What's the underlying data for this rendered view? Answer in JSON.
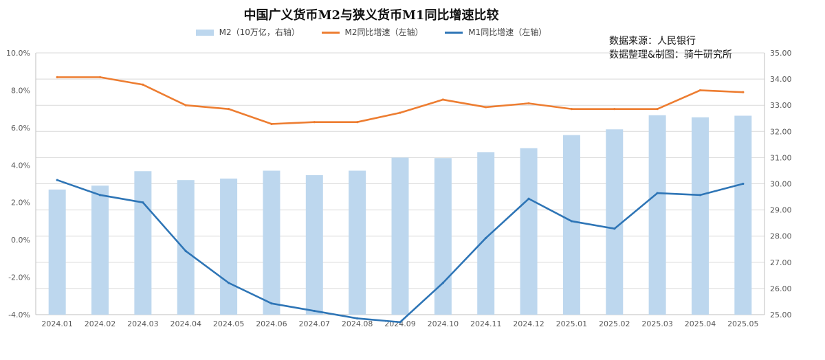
{
  "chart_data": {
    "type": "bar+line",
    "title": "中国广义货币M2与狭义货币M1同比增速比较",
    "categories": [
      "2024.01",
      "2024.02",
      "2024.03",
      "2024.04",
      "2024.05",
      "2024.06",
      "2024.07",
      "2024.08",
      "2024.09",
      "2024.10",
      "2024.11",
      "2024.12",
      "2025.01",
      "2025.02",
      "2025.03",
      "2025.04",
      "2025.05"
    ],
    "series": [
      {
        "name": "M2（10万亿，右轴）",
        "type": "bar",
        "axis": "right",
        "color": "#bdd7ee",
        "values": [
          29.78,
          29.93,
          30.48,
          30.14,
          30.2,
          30.5,
          30.33,
          30.5,
          31.0,
          30.98,
          31.21,
          31.36,
          31.86,
          32.08,
          32.62,
          32.54,
          32.6
        ]
      },
      {
        "name": "M2同比增速（左轴）",
        "type": "line",
        "axis": "left",
        "color": "#ed7d31",
        "values": [
          8.7,
          8.7,
          8.3,
          7.2,
          7.0,
          6.2,
          6.3,
          6.3,
          6.8,
          7.5,
          7.1,
          7.3,
          7.0,
          7.0,
          7.0,
          8.0,
          7.9
        ]
      },
      {
        "name": "M1同比增速（左轴）",
        "type": "line",
        "axis": "left",
        "color": "#2e75b6",
        "values": [
          3.2,
          2.4,
          2.0,
          -0.6,
          -2.3,
          -3.4,
          -3.8,
          -4.2,
          -4.4,
          -2.3,
          0.1,
          2.2,
          1.0,
          0.6,
          2.5,
          2.4,
          3.0
        ]
      }
    ],
    "left_axis": {
      "min": -4.0,
      "max": 10.0,
      "step": 2.0,
      "ticks": [
        "10.0%",
        "8.0%",
        "6.0%",
        "4.0%",
        "2.0%",
        "0.0%",
        "-2.0%",
        "-4.0%"
      ]
    },
    "right_axis": {
      "min": 25.0,
      "max": 35.0,
      "step": 1.0,
      "ticks": [
        "35.00",
        "34.00",
        "33.00",
        "32.00",
        "31.00",
        "30.00",
        "29.00",
        "28.00",
        "27.00",
        "26.00",
        "25.00"
      ]
    },
    "grid": true,
    "legend_position": "top"
  },
  "source": {
    "line1": "数据来源：人民银行",
    "line2": "数据整理&制图：骑牛研究所"
  }
}
